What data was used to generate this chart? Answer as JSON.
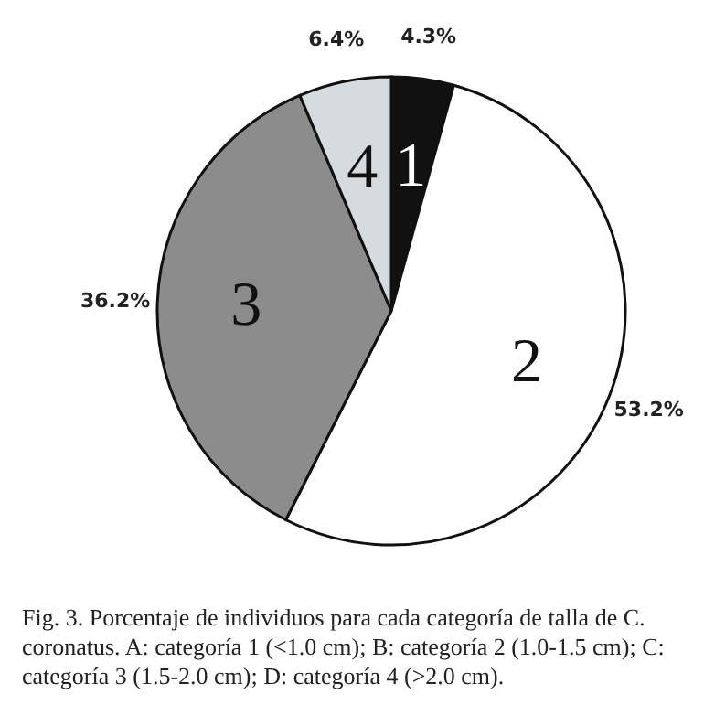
{
  "chart_data": {
    "type": "pie",
    "categories": [
      "1",
      "2",
      "3",
      "4"
    ],
    "values": [
      4.3,
      53.2,
      36.2,
      6.4
    ],
    "colors": [
      "#111111",
      "#ffffff",
      "#8c8c8c",
      "#d6dbe0"
    ],
    "value_labels": [
      "4.3%",
      "53.2%",
      "36.2%",
      "6.4%"
    ],
    "annotations": [
      "Fig. 3. Porcentaje de individuos para cada categoría de talla de C. coronatus. A: categoría 1 (<1.0 cm); B: categoría 2 (1.0-1.5 cm); C: categoría 3 (1.5-2.0 cm); D: categoría 4 (>2.0 cm)."
    ]
  }
}
